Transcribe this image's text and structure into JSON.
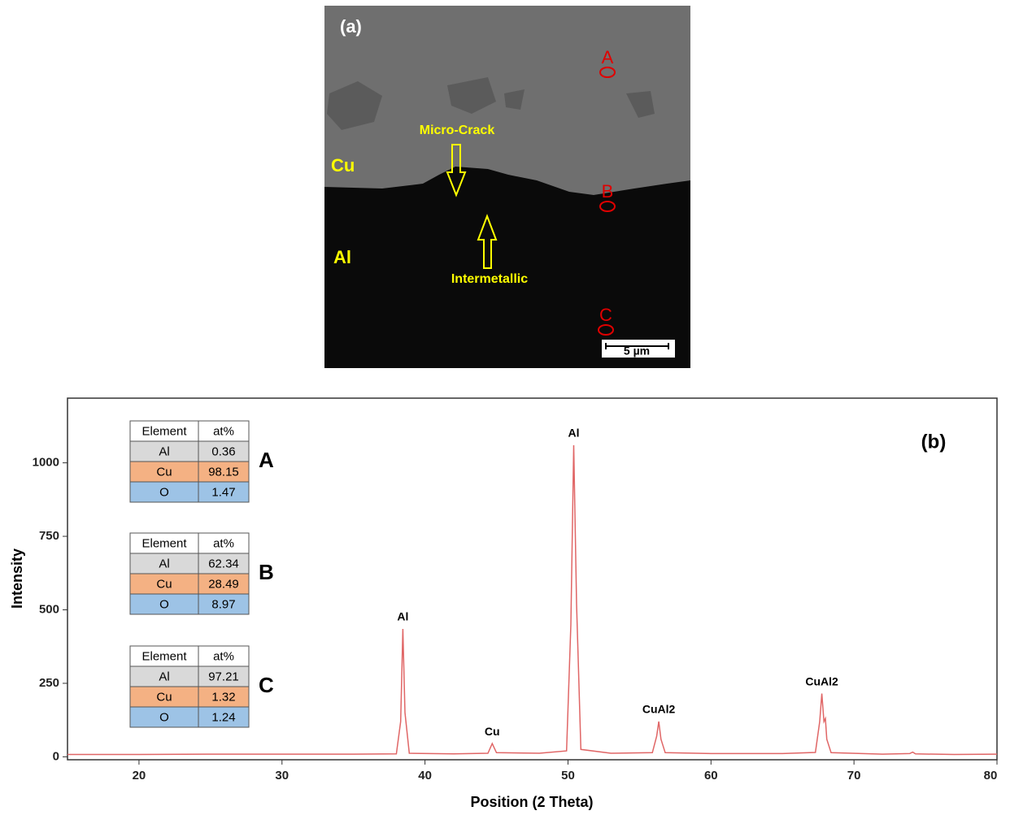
{
  "sem_panel": {
    "panel_label": "(a)",
    "phase_top": "Cu",
    "phase_bottom": "Al",
    "crack_label": "Micro-Crack",
    "intermetallic_label": "Intermetallic",
    "points": [
      "A",
      "B",
      "C"
    ],
    "scale_bar": "5 µm"
  },
  "tables": [
    {
      "label": "A",
      "header": [
        "Element",
        "at%"
      ],
      "rows": [
        [
          "Al",
          0.36
        ],
        [
          "Cu",
          98.15
        ],
        [
          "O",
          1.47
        ]
      ]
    },
    {
      "label": "B",
      "header": [
        "Element",
        "at%"
      ],
      "rows": [
        [
          "Al",
          62.34
        ],
        [
          "Cu",
          28.49
        ],
        [
          "O",
          8.97
        ]
      ]
    },
    {
      "label": "C",
      "header": [
        "Element",
        "at%"
      ],
      "rows": [
        [
          "Al",
          97.21
        ],
        [
          "Cu",
          1.32
        ],
        [
          "O",
          1.24
        ]
      ]
    }
  ],
  "chart_data": {
    "type": "line",
    "panel_label": "(b)",
    "xlabel": "Position (2 Theta)",
    "ylabel": "Intensity",
    "color": "#e06666",
    "x": [
      15,
      20,
      25,
      30,
      35,
      38.0,
      38.3,
      38.45,
      38.6,
      38.9,
      42,
      44.4,
      44.7,
      45.0,
      48,
      49.9,
      50.2,
      50.4,
      50.6,
      50.9,
      53,
      55.9,
      56.2,
      56.35,
      56.5,
      56.8,
      60,
      65,
      67.3,
      67.6,
      67.75,
      67.9,
      68.0,
      68.1,
      68.4,
      72,
      73.9,
      74.1,
      74.3,
      77,
      80
    ],
    "values": [
      8,
      8,
      9,
      9,
      9,
      10,
      120,
      435,
      150,
      12,
      10,
      12,
      45,
      14,
      12,
      20,
      450,
      1060,
      520,
      25,
      12,
      14,
      70,
      120,
      60,
      14,
      11,
      11,
      15,
      120,
      215,
      120,
      130,
      60,
      14,
      9,
      11,
      16,
      10,
      8,
      9
    ],
    "xlim": [
      15,
      80
    ],
    "ylim": [
      -10,
      1220
    ],
    "xticks": [
      20,
      30,
      40,
      50,
      60,
      70,
      80
    ],
    "yticks": [
      0,
      250,
      500,
      750,
      1000
    ],
    "annotations": [
      {
        "text": "Al",
        "x": 38.45,
        "y": 435
      },
      {
        "text": "Cu",
        "x": 44.7,
        "y": 45
      },
      {
        "text": "Al",
        "x": 50.4,
        "y": 1060
      },
      {
        "text": "CuAl2",
        "x": 56.35,
        "y": 120
      },
      {
        "text": "CuAl2",
        "x": 67.75,
        "y": 215
      }
    ]
  }
}
